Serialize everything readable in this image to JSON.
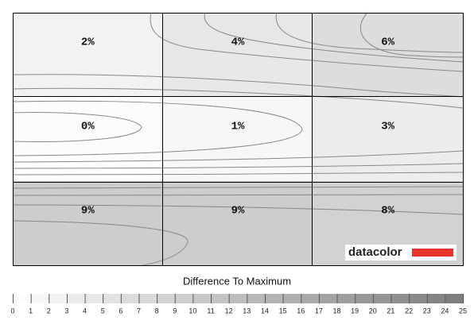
{
  "chart_data": {
    "type": "heatmap",
    "values": [
      [
        2,
        4,
        6
      ],
      [
        0,
        1,
        3
      ],
      [
        9,
        9,
        8
      ]
    ],
    "value_labels": [
      [
        "2%",
        "4%",
        "6%"
      ],
      [
        "0%",
        "1%",
        "3%"
      ],
      [
        "9%",
        "9%",
        "8%"
      ]
    ],
    "colorbar_title": "Difference To Maximum",
    "colorbar_lim": [
      0,
      25
    ],
    "colorbar_ticks": [
      0,
      1,
      2,
      3,
      4,
      5,
      6,
      7,
      8,
      9,
      10,
      11,
      12,
      13,
      14,
      15,
      16,
      17,
      18,
      19,
      20,
      21,
      22,
      23,
      24,
      25
    ],
    "colors": [
      "#fcfcfc",
      "#7a7a7a"
    ],
    "logo": "datacolor"
  }
}
